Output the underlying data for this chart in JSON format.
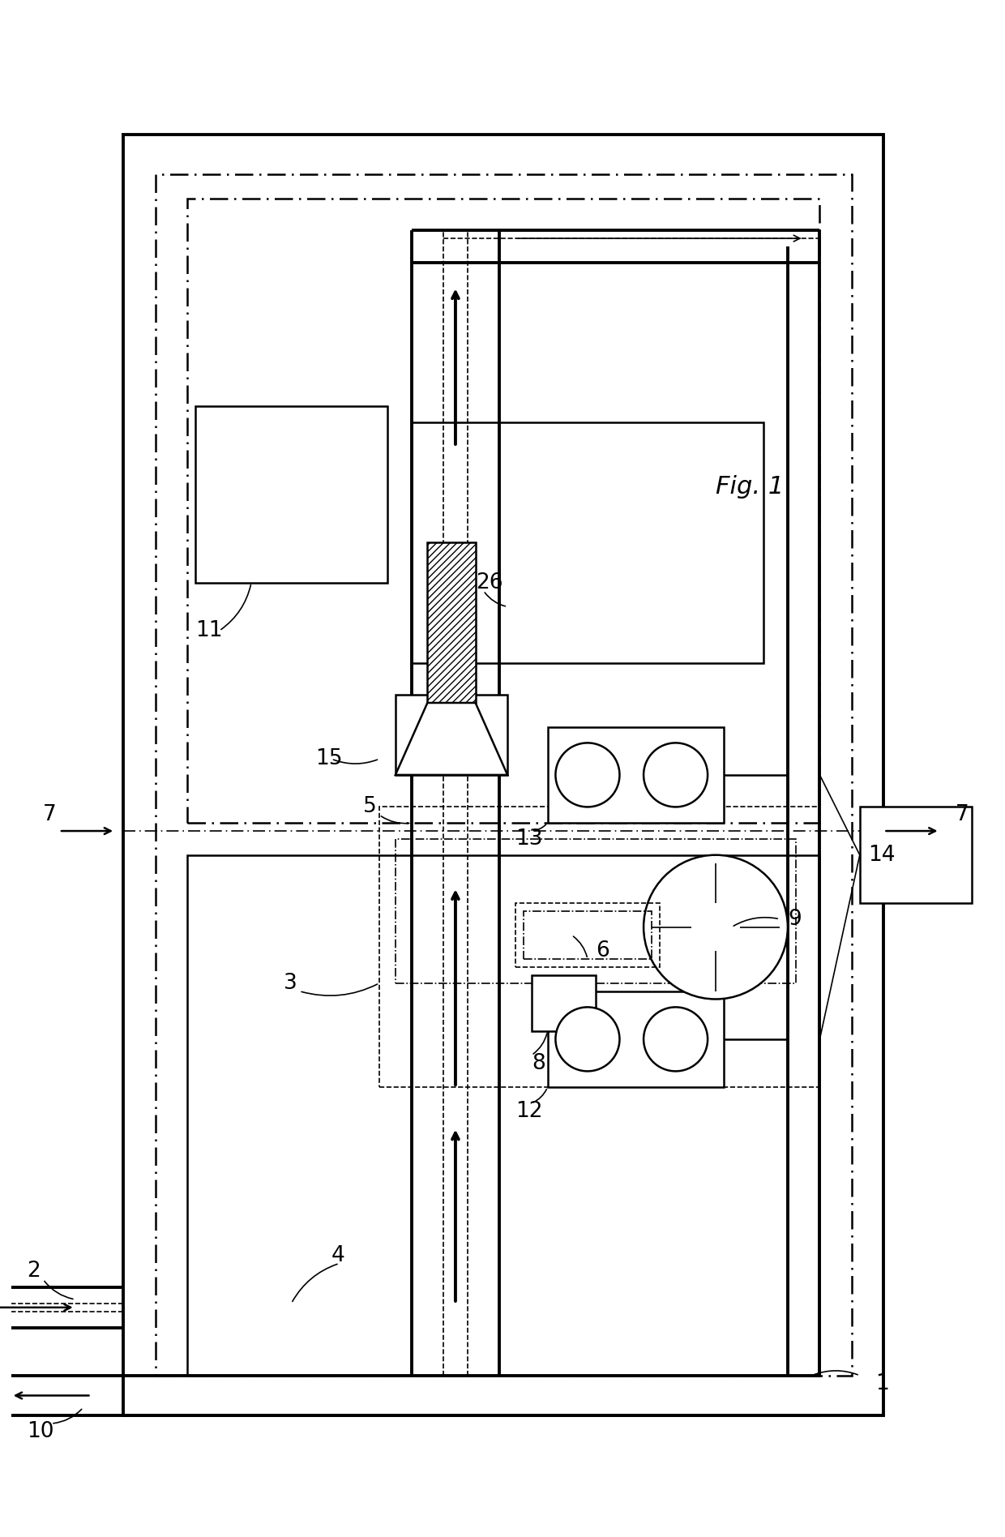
{
  "bg_color": "#ffffff",
  "line_color": "#000000",
  "fig_w": 12.4,
  "fig_h": 18.96,
  "lw_thick": 2.8,
  "lw_med": 1.8,
  "lw_thin": 1.2,
  "label_fs": 19,
  "fig1_fs": 22
}
